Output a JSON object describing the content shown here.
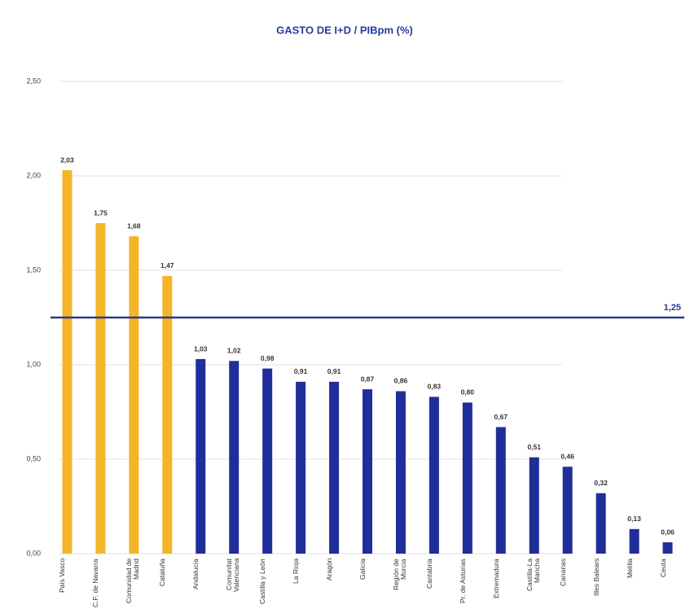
{
  "chart_data": {
    "type": "bar",
    "title": "GASTO DE I+D / PIBpm (%)",
    "categories": [
      "País Vasco",
      "C.F. de Navarra",
      "Comunidad de Madrid",
      "Cataluña",
      "Andalucía",
      "Comunitat Valenciana",
      "Castilla y León",
      "La Rioja",
      "Aragón",
      "Galicia",
      "Región de Murcia",
      "Cantabria",
      "Pr. de Asturias",
      "Extremadura",
      "Castilla-La Mancha",
      "Canarias",
      "Illes Balears",
      "Melilla",
      "Ceuta"
    ],
    "values": [
      2.03,
      1.75,
      1.68,
      1.47,
      1.03,
      1.02,
      0.98,
      0.91,
      0.91,
      0.87,
      0.86,
      0.83,
      0.8,
      0.67,
      0.51,
      0.46,
      0.32,
      0.13,
      0.06
    ],
    "value_labels": [
      "2,03",
      "1,75",
      "1,68",
      "1,47",
      "1,03",
      "1,02",
      "0,98",
      "0,91",
      "0,91",
      "0,87",
      "0,86",
      "0,83",
      "0,80",
      "0,67",
      "0,51",
      "0,46",
      "0,32",
      "0,13",
      "0,06"
    ],
    "colors": [
      "#f5b52a",
      "#f5b52a",
      "#f5b52a",
      "#f5b52a",
      "#1f2e9a",
      "#1f2e9a",
      "#1f2e9a",
      "#1f2e9a",
      "#1f2e9a",
      "#1f2e9a",
      "#1f2e9a",
      "#1f2e9a",
      "#1f2e9a",
      "#1f2e9a",
      "#1f2e9a",
      "#1f2e9a",
      "#1f2e9a",
      "#1f2e9a",
      "#1f2e9a"
    ],
    "ylim": [
      0,
      2.5
    ],
    "yticks": [
      {
        "value": 0,
        "label": "0,00"
      },
      {
        "value": 0.5,
        "label": "0,50"
      },
      {
        "value": 1,
        "label": "1,00"
      },
      {
        "value": 1.5,
        "label": "1,50"
      },
      {
        "value": 2,
        "label": "2,00"
      },
      {
        "value": 2.5,
        "label": "2,50"
      }
    ],
    "grid": true,
    "reference_line": {
      "value": 1.25,
      "label": "1,25",
      "color": "#2a3b8f"
    }
  }
}
